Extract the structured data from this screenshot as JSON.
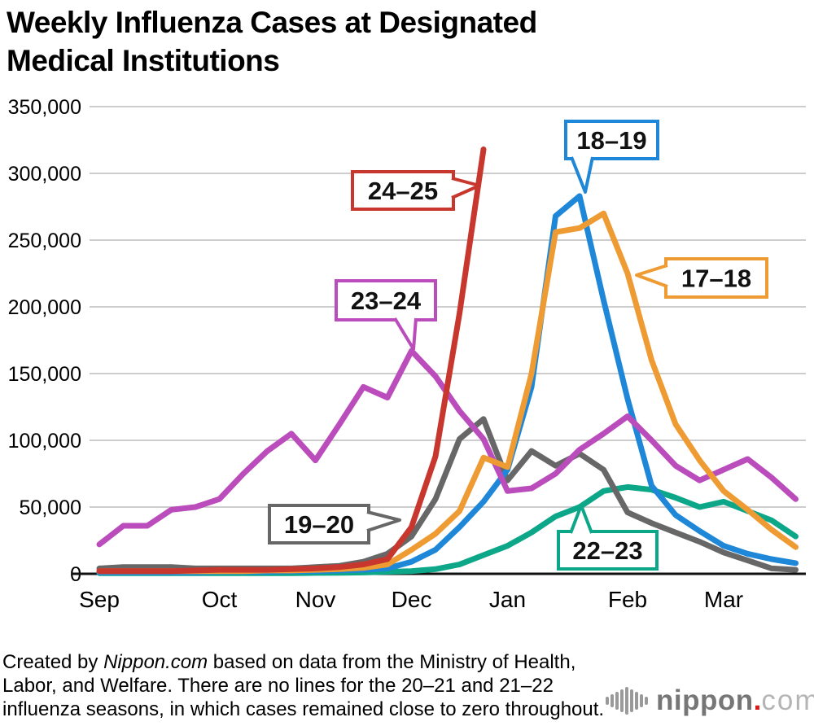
{
  "page": {
    "title_lines": [
      "Weekly Influenza Cases at Designated",
      "Medical Institutions"
    ],
    "background": "#ffffff"
  },
  "chart_data": {
    "type": "line",
    "title": "Weekly Influenza Cases at Designated Medical Institutions",
    "x_unit": "week (September through March)",
    "x_axis": {
      "months": [
        "Sep",
        "Oct",
        "Nov",
        "Dec",
        "Jan",
        "Feb",
        "Mar"
      ],
      "month_week_index": [
        0,
        5,
        9,
        13,
        17,
        22,
        26
      ]
    },
    "y_axis": {
      "min": 0,
      "max": 350000,
      "tick_interval": 50000,
      "tick_labels": [
        "0",
        "50,000",
        "100,000",
        "150,000",
        "200,000",
        "250,000",
        "300,000",
        "350,000"
      ]
    },
    "grid_color": "#cdcdcd",
    "axis_color": "#111111",
    "series": [
      {
        "name": "season-22-23",
        "label": "22–23",
        "color": "#0ca789",
        "values": [
          500,
          500,
          500,
          500,
          500,
          500,
          500,
          500,
          500,
          700,
          800,
          1000,
          1500,
          2000,
          3500,
          7000,
          14000,
          21000,
          31000,
          43000,
          50000,
          62000,
          65000,
          63000,
          57000,
          50000,
          54000,
          47000,
          40000,
          28000
        ]
      },
      {
        "name": "season-19-20",
        "label": "19–20",
        "color": "#676767",
        "values": [
          4000,
          5000,
          5000,
          5000,
          4000,
          4000,
          4000,
          4000,
          4000,
          5000,
          6000,
          9000,
          15000,
          28000,
          56000,
          101000,
          116000,
          70000,
          92000,
          81000,
          90000,
          78000,
          46000,
          38000,
          31000,
          24000,
          16000,
          10000,
          4000,
          3000
        ]
      },
      {
        "name": "season-18-19",
        "label": "18–19",
        "color": "#1e87d8",
        "values": [
          1000,
          1000,
          1000,
          1000,
          1000,
          1500,
          1500,
          1500,
          2000,
          2000,
          2500,
          3000,
          4000,
          9000,
          18000,
          35000,
          54000,
          78000,
          140000,
          268000,
          283000,
          205000,
          131000,
          66000,
          44000,
          32000,
          21000,
          15000,
          11000,
          8000
        ]
      },
      {
        "name": "season-23-24",
        "label": "23–24",
        "color": "#bb4cbc",
        "values": [
          22000,
          36000,
          36000,
          48000,
          50000,
          56000,
          75000,
          92000,
          105000,
          85000,
          112000,
          140000,
          132000,
          167000,
          148000,
          122000,
          101000,
          62000,
          64000,
          75000,
          93000,
          105000,
          118000,
          100000,
          81000,
          70000,
          78000,
          86000,
          72000,
          56000
        ]
      },
      {
        "name": "season-17-18",
        "label": "17–18",
        "color": "#ef9b33",
        "values": [
          2000,
          2000,
          2000,
          2000,
          2000,
          2000,
          2000,
          2500,
          2500,
          3000,
          3500,
          4500,
          7000,
          18000,
          30000,
          47000,
          87000,
          80000,
          150000,
          256000,
          259000,
          270000,
          225000,
          160000,
          112000,
          85000,
          62000,
          48000,
          33000,
          20000
        ]
      },
      {
        "name": "season-24-25",
        "label": "24–25",
        "color": "#c8372d",
        "values": [
          2000,
          2000,
          2000,
          2000,
          2500,
          3000,
          3000,
          3000,
          3500,
          4000,
          5000,
          7000,
          11000,
          35000,
          88000,
          195000,
          318000
        ]
      }
    ],
    "legend_position": "callout-labels-on-lines"
  },
  "footer": {
    "prefix": "Created by ",
    "brand": "Nippon.com",
    "line1_rest": " based on data from the Ministry of Health,",
    "line2": "Labor, and Welfare. There are no lines for the 20–21 and 21–22",
    "line3": "influenza seasons, in which cases remained close to zero throughout."
  },
  "logo": {
    "name": "nippon.com",
    "text_bold": "nippon",
    "dot": ".",
    "text_light": "com",
    "bold_color": "#767676",
    "dot_color": "#dc1a1a",
    "light_color": "#b5b5b5"
  }
}
